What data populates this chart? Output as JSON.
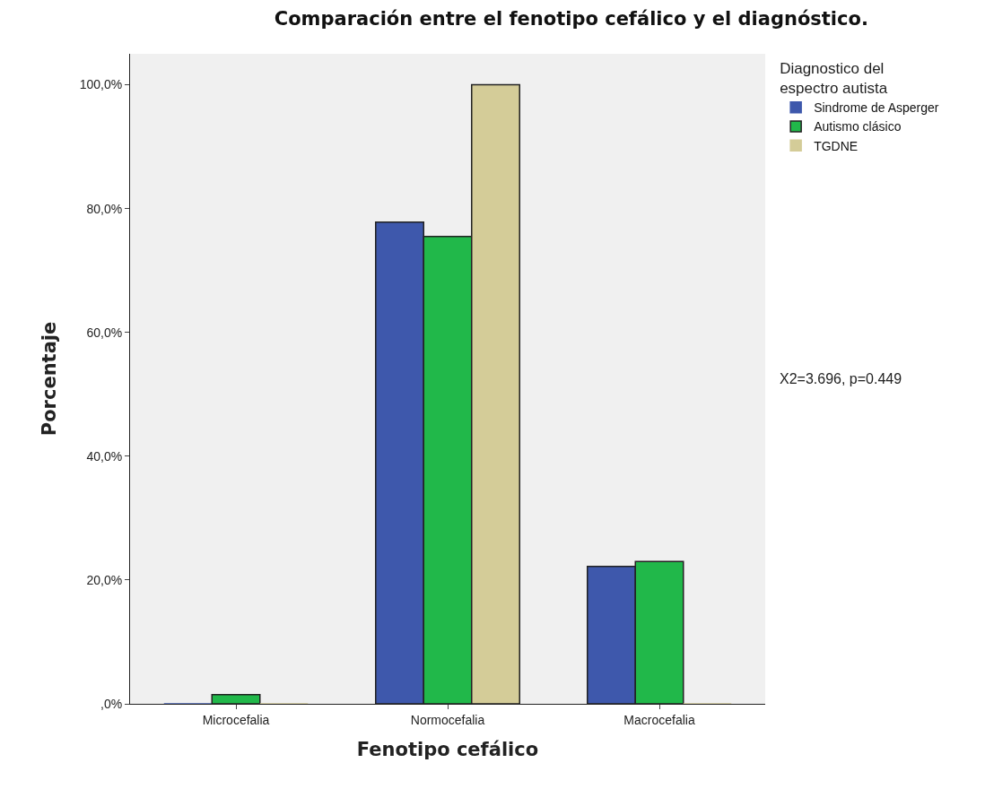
{
  "chart_data": {
    "type": "bar",
    "title": "Comparación entre el fenotipo cefálico y el diagnóstico.",
    "xlabel": "Fenotipo cefálico",
    "ylabel": "Porcentaje",
    "legend_title": "Diagnostico del espectro autista",
    "categories": [
      "Microcefalia",
      "Normocefalia",
      "Macrocefalia"
    ],
    "series": [
      {
        "name": "Sindrome de Asperger",
        "color": "#3e58ac",
        "values": [
          0,
          77.8,
          22.2
        ]
      },
      {
        "name": "Autismo clásico",
        "color": "#21b84a",
        "values": [
          1.5,
          75.5,
          23.0
        ]
      },
      {
        "name": "TGDNE",
        "color": "#d4cc98",
        "values": [
          0,
          100,
          0
        ]
      }
    ],
    "ylim": [
      0,
      105
    ],
    "yticks": [
      {
        "value": 0,
        "label": ",0%"
      },
      {
        "value": 20,
        "label": "20,0%"
      },
      {
        "value": 40,
        "label": "40,0%"
      },
      {
        "value": 60,
        "label": "60,0%"
      },
      {
        "value": 80,
        "label": "80,0%"
      },
      {
        "value": 100,
        "label": "100,0%"
      }
    ],
    "grid": false,
    "legend": "top right",
    "annotations": [
      "X2=3.696, p=0.449"
    ]
  }
}
